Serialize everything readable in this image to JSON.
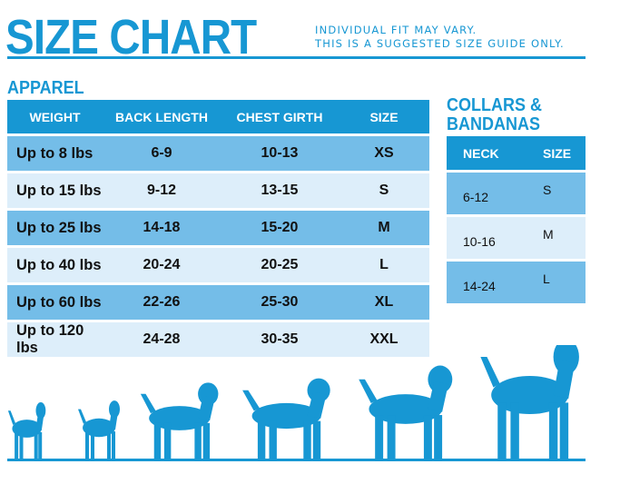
{
  "header": {
    "title": "SIZE CHART",
    "note_line1": "INDIVIDUAL FIT MAY VARY.",
    "note_line2": "THIS IS A SUGGESTED SIZE GUIDE ONLY."
  },
  "apparel": {
    "heading": "APPAREL",
    "columns": [
      "WEIGHT",
      "BACK LENGTH",
      "CHEST GIRTH",
      "SIZE"
    ],
    "rows": [
      [
        "Up to 8 lbs",
        "6-9",
        "10-13",
        "XS"
      ],
      [
        "Up to 15 lbs",
        "9-12",
        "13-15",
        "S"
      ],
      [
        "Up to 25 lbs",
        "14-18",
        "15-20",
        "M"
      ],
      [
        "Up to 40 lbs",
        "20-24",
        "20-25",
        "L"
      ],
      [
        "Up to 60 lbs",
        "22-26",
        "25-30",
        "XL"
      ],
      [
        "Up to 120 lbs",
        "24-28",
        "30-35",
        "XXL"
      ]
    ]
  },
  "collars": {
    "heading_line1": "COLLARS &",
    "heading_line2": "BANDANAS",
    "columns": [
      "NECK",
      "SIZE"
    ],
    "rows": [
      [
        "6-12",
        "S"
      ],
      [
        "10-16",
        "M"
      ],
      [
        "14-24",
        "L"
      ]
    ]
  },
  "illustration": {
    "icons": [
      "pomeranian-icon",
      "pug-icon",
      "beagle-icon",
      "spaniel-icon",
      "husky-icon",
      "great-dane-icon"
    ]
  },
  "colors": {
    "accent": "#1797d3",
    "row_dark": "#74bde8",
    "row_light": "#ddeefa"
  }
}
